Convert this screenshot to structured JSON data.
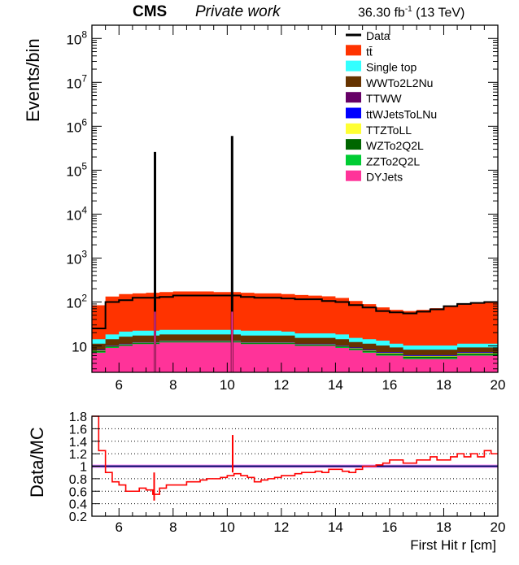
{
  "header": {
    "experiment": "CMS",
    "label": "Private work",
    "lumi": "36.30 fb",
    "lumi_sup": "-1",
    "energy": " (13 TeV)"
  },
  "colors": {
    "data": "#000000",
    "ttbar": "#ff3300",
    "single_top": "#33ffff",
    "WWTo2L2Nu": "#663300",
    "TTWW": "#660066",
    "ttWJetsToLNu": "#0000ff",
    "TTZToLL": "#ffff33",
    "WZTo2Q2L": "#006600",
    "ZZTo2Q2L": "#00cc33",
    "DYJets": "#ff3399",
    "ratio": "#ff0000",
    "ratio_line": "#000066",
    "ratio_band": "#ff99ff"
  },
  "chart_data": [
    {
      "type": "area",
      "stacked": true,
      "log_y": true,
      "ylabel": "Events/bin",
      "xlim": [
        5,
        20
      ],
      "ylim": [
        2.5,
        200000000
      ],
      "ytick_labels": [
        "10",
        "10^2",
        "10^3",
        "10^4",
        "10^5",
        "10^6",
        "10^7",
        "10^8"
      ],
      "xticks": [
        6,
        8,
        10,
        12,
        14,
        16,
        18,
        20
      ],
      "legend_position": "top-right",
      "legend": [
        "Data",
        "tt̄",
        "Single top",
        "WWTo2L2Nu",
        "TTWW",
        "ttWJetsToLNu",
        "TTZToLL",
        "WZTo2Q2L",
        "ZZTo2Q2L",
        "DYJets"
      ],
      "x": [
        5.0,
        5.5,
        6.0,
        6.5,
        7.0,
        7.5,
        8.0,
        8.5,
        9.0,
        9.5,
        10.0,
        10.5,
        11.0,
        11.5,
        12.0,
        12.5,
        13.0,
        13.5,
        14.0,
        14.5,
        15.0,
        15.5,
        16.0,
        16.5,
        17.0,
        17.5,
        18.0,
        18.5,
        19.0,
        19.5,
        20.0
      ],
      "series": [
        {
          "name": "DYJets",
          "values": [
            7,
            9,
            10,
            11,
            11,
            12,
            12,
            12,
            12,
            12,
            12,
            11,
            11,
            11,
            11,
            10,
            10,
            10,
            9,
            8,
            7,
            6,
            6,
            5,
            5,
            5,
            5,
            6,
            6,
            6,
            7
          ]
        },
        {
          "name": "ZZTo2Q2L",
          "values": [
            0.3,
            0.3,
            0.3,
            0.3,
            0.3,
            0.3,
            0.3,
            0.3,
            0.3,
            0.3,
            0.3,
            0.3,
            0.3,
            0.3,
            0.3,
            0.3,
            0.3,
            0.3,
            0.3,
            0.3,
            0.3,
            0.3,
            0.3,
            0.3,
            0.3,
            0.3,
            0.3,
            0.3,
            0.3,
            0.3,
            0.3
          ]
        },
        {
          "name": "WZTo2Q2L",
          "values": [
            0.4,
            0.4,
            0.4,
            0.4,
            0.4,
            0.4,
            0.4,
            0.4,
            0.4,
            0.4,
            0.4,
            0.4,
            0.4,
            0.4,
            0.4,
            0.4,
            0.4,
            0.4,
            0.4,
            0.4,
            0.4,
            0.4,
            0.4,
            0.4,
            0.4,
            0.4,
            0.4,
            0.4,
            0.4,
            0.4,
            0.4
          ]
        },
        {
          "name": "TTZToLL",
          "values": [
            0.2,
            0.2,
            0.2,
            0.2,
            0.2,
            0.2,
            0.2,
            0.2,
            0.2,
            0.2,
            0.2,
            0.2,
            0.2,
            0.2,
            0.2,
            0.2,
            0.2,
            0.2,
            0.2,
            0.2,
            0.2,
            0.2,
            0.2,
            0.2,
            0.2,
            0.2,
            0.2,
            0.2,
            0.2,
            0.2,
            0.2
          ]
        },
        {
          "name": "ttWJetsToLNu",
          "values": [
            0.2,
            0.2,
            0.2,
            0.2,
            0.2,
            0.2,
            0.2,
            0.2,
            0.2,
            0.2,
            0.2,
            0.2,
            0.2,
            0.2,
            0.2,
            0.2,
            0.2,
            0.2,
            0.2,
            0.2,
            0.2,
            0.2,
            0.2,
            0.2,
            0.2,
            0.2,
            0.2,
            0.2,
            0.2,
            0.2,
            0.2
          ]
        },
        {
          "name": "TTWW",
          "values": [
            0.1,
            0.1,
            0.1,
            0.1,
            0.1,
            0.1,
            0.1,
            0.1,
            0.1,
            0.1,
            0.1,
            0.1,
            0.1,
            0.1,
            0.1,
            0.1,
            0.1,
            0.1,
            0.1,
            0.1,
            0.1,
            0.1,
            0.1,
            0.1,
            0.1,
            0.1,
            0.1,
            0.1,
            0.1,
            0.1,
            0.1
          ]
        },
        {
          "name": "WWTo2L2Nu",
          "values": [
            3,
            4,
            5,
            5,
            5,
            5,
            5,
            5,
            5,
            5,
            5,
            5,
            5,
            5,
            5,
            4,
            4,
            4,
            4,
            3,
            3,
            3,
            2,
            2,
            2,
            2,
            2,
            2,
            2,
            2,
            2
          ]
        },
        {
          "name": "Single top",
          "values": [
            3,
            4,
            5,
            5,
            5,
            5,
            5,
            5,
            5,
            5,
            5,
            5,
            5,
            5,
            4,
            4,
            4,
            4,
            4,
            3,
            3,
            3,
            2,
            2,
            2,
            2,
            2,
            2,
            2,
            2,
            2
          ]
        },
        {
          "name": "tt̄",
          "values": [
            70,
            115,
            130,
            135,
            140,
            145,
            150,
            150,
            150,
            145,
            145,
            140,
            135,
            135,
            130,
            125,
            120,
            115,
            105,
            90,
            75,
            62,
            55,
            52,
            56,
            62,
            70,
            78,
            85,
            92,
            98
          ]
        },
        {
          "name": "Data",
          "values": [
            25,
            100,
            110,
            125,
            125,
            130,
            140,
            140,
            140,
            140,
            140,
            130,
            125,
            125,
            120,
            115,
            115,
            105,
            100,
            85,
            75,
            62,
            58,
            55,
            60,
            68,
            80,
            90,
            95,
            100,
            100
          ]
        }
      ],
      "spikes": [
        {
          "x": 7.33,
          "value": 260000
        },
        {
          "x": 10.18,
          "value": 600000
        }
      ]
    },
    {
      "type": "line",
      "ylabel": "Data/MC",
      "xlabel": "First Hit r [cm]",
      "xlim": [
        5,
        20
      ],
      "ylim": [
        0.2,
        1.8
      ],
      "yticks": [
        0.2,
        0.4,
        0.6,
        0.8,
        1,
        1.2,
        1.4,
        1.6,
        1.8
      ],
      "xticks": [
        6,
        8,
        10,
        12,
        14,
        16,
        18,
        20
      ],
      "grid": true,
      "reference_line": 1.0,
      "x": [
        5.0,
        5.25,
        5.5,
        5.75,
        6.0,
        6.25,
        6.5,
        6.75,
        7.0,
        7.25,
        7.5,
        7.75,
        8.0,
        8.25,
        8.5,
        8.75,
        9.0,
        9.25,
        9.5,
        9.75,
        10.0,
        10.25,
        10.5,
        10.75,
        11.0,
        11.25,
        11.5,
        11.75,
        12.0,
        12.25,
        12.5,
        12.75,
        13.0,
        13.25,
        13.5,
        13.75,
        14.0,
        14.25,
        14.5,
        14.75,
        15.0,
        15.25,
        15.5,
        15.75,
        16.0,
        16.25,
        16.5,
        16.75,
        17.0,
        17.25,
        17.5,
        17.75,
        18.0,
        18.25,
        18.5,
        18.75,
        19.0,
        19.25,
        19.5,
        19.75,
        20.0
      ],
      "values": [
        1.8,
        1.25,
        0.9,
        0.75,
        0.7,
        0.6,
        0.6,
        0.65,
        0.62,
        0.55,
        0.65,
        0.7,
        0.7,
        0.7,
        0.75,
        0.75,
        0.78,
        0.8,
        0.8,
        0.82,
        0.85,
        0.88,
        0.85,
        0.82,
        0.75,
        0.78,
        0.8,
        0.82,
        0.85,
        0.85,
        0.88,
        0.9,
        0.9,
        0.92,
        0.9,
        0.95,
        0.95,
        0.92,
        0.9,
        0.95,
        1.0,
        1.0,
        1.02,
        1.05,
        1.1,
        1.1,
        1.05,
        1.05,
        1.1,
        1.1,
        1.15,
        1.1,
        1.1,
        1.15,
        1.2,
        1.15,
        1.2,
        1.15,
        1.25,
        1.2,
        1.2
      ],
      "spikes": [
        {
          "x": 10.2,
          "value": 1.5
        },
        {
          "x": 7.3,
          "value": 0.45
        }
      ]
    }
  ]
}
